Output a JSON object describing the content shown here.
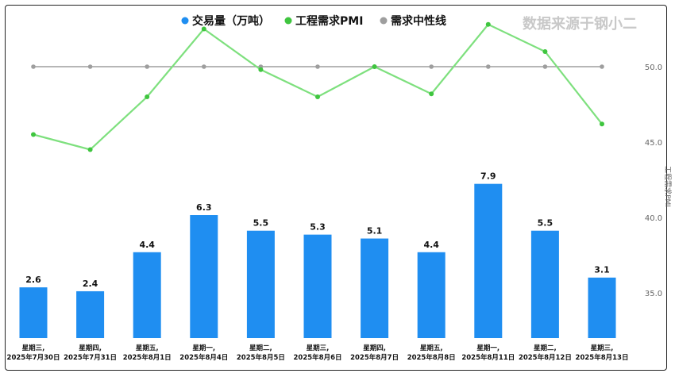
{
  "watermark": "数据来源于钢小二",
  "colors": {
    "bar": "#1f8ef1",
    "pmi_line": "#7ee07e",
    "pmi_marker": "#3fc53f",
    "neutral": "#9e9e9e",
    "text": "#111111",
    "axis_text": "#666666"
  },
  "chart_data": {
    "type": "bar",
    "categories": [
      [
        "星期三,",
        "2025年7月30日"
      ],
      [
        "星期四,",
        "2025年7月31日"
      ],
      [
        "星期五,",
        "2025年8月1日"
      ],
      [
        "星期一,",
        "2025年8月4日"
      ],
      [
        "星期二,",
        "2025年8月5日"
      ],
      [
        "星期三,",
        "2025年8月6日"
      ],
      [
        "星期四,",
        "2025年8月7日"
      ],
      [
        "星期五,",
        "2025年8月8日"
      ],
      [
        "星期一,",
        "2025年8月11日"
      ],
      [
        "星期二,",
        "2025年8月12日"
      ],
      [
        "星期三,",
        "2025年8月13日"
      ]
    ],
    "series": [
      {
        "name": "交易量（万吨）",
        "type": "bar",
        "axis": "left",
        "values": [
          2.6,
          2.4,
          4.4,
          6.3,
          5.5,
          5.3,
          5.1,
          4.4,
          7.9,
          5.5,
          3.1
        ]
      },
      {
        "name": "工程需求PMI",
        "type": "line",
        "axis": "right",
        "values": [
          45.5,
          44.5,
          48.0,
          52.5,
          49.8,
          48.0,
          50.0,
          48.2,
          52.8,
          51.0,
          46.2
        ]
      },
      {
        "name": "需求中性线",
        "type": "line",
        "axis": "right",
        "values": [
          50,
          50,
          50,
          50,
          50,
          50,
          50,
          50,
          50,
          50,
          50
        ]
      }
    ],
    "right_axis": {
      "ticks": [
        "35.0",
        "40.0",
        "45.0",
        "50.0"
      ],
      "min": 32.0,
      "max": 54.0,
      "label": "工程需求PMI"
    },
    "bar_labels": [
      "2.6",
      "2.4",
      "4.4",
      "6.3",
      "5.5",
      "5.3",
      "5.1",
      "4.4",
      "7.9",
      "5.5",
      "3.1"
    ],
    "legend_position": "top-center",
    "grid": false
  }
}
